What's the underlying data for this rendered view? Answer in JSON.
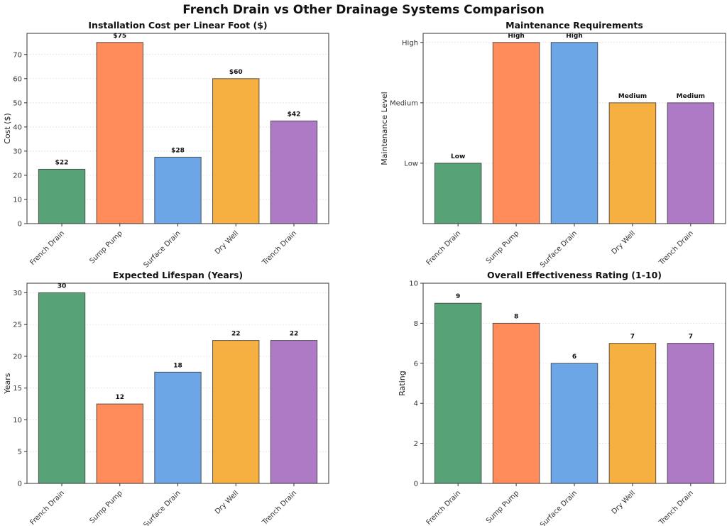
{
  "suptitle": "French Drain vs Other Drainage Systems Comparison",
  "colors": [
    "#57a377",
    "#ff8c5a",
    "#6ca6e6",
    "#f5b041",
    "#af7ac5"
  ],
  "chart_data": [
    {
      "type": "bar",
      "title": "Installation Cost per Linear Foot ($)",
      "xlabel": "",
      "ylabel": "Cost ($)",
      "categories": [
        "French Drain",
        "Sump Pump",
        "Surface Drain",
        "Dry Well",
        "Trench Drain"
      ],
      "values": [
        22.5,
        75,
        27.5,
        60,
        42.5
      ],
      "data_labels": [
        "$22",
        "$75",
        "$28",
        "$60",
        "$42"
      ],
      "ylim": [
        0,
        78.75
      ],
      "yticks": [
        0,
        10,
        20,
        30,
        40,
        50,
        60,
        70
      ],
      "ytick_labels": [
        "0",
        "10",
        "20",
        "30",
        "40",
        "50",
        "60",
        "70"
      ],
      "grid": "y"
    },
    {
      "type": "bar",
      "title": "Maintenance Requirements",
      "xlabel": "",
      "ylabel": "Maintenance Level",
      "categories": [
        "French Drain",
        "Sump Pump",
        "Surface Drain",
        "Dry Well",
        "Trench Drain"
      ],
      "values": [
        1,
        3,
        3,
        2,
        2
      ],
      "data_labels": [
        "Low",
        "High",
        "High",
        "Medium",
        "Medium"
      ],
      "ylim": [
        0,
        3.15
      ],
      "yticks": [
        1,
        2,
        3
      ],
      "ytick_labels": [
        "Low",
        "Medium",
        "High"
      ],
      "grid": "y"
    },
    {
      "type": "bar",
      "title": "Expected Lifespan (Years)",
      "xlabel": "",
      "ylabel": "Years",
      "categories": [
        "French Drain",
        "Sump Pump",
        "Surface Drain",
        "Dry Well",
        "Trench Drain"
      ],
      "values": [
        30,
        12.5,
        17.5,
        22.5,
        22.5
      ],
      "data_labels": [
        "30",
        "12",
        "18",
        "22",
        "22"
      ],
      "ylim": [
        0,
        31.5
      ],
      "yticks": [
        0,
        5,
        10,
        15,
        20,
        25,
        30
      ],
      "ytick_labels": [
        "0",
        "5",
        "10",
        "15",
        "20",
        "25",
        "30"
      ],
      "grid": "y"
    },
    {
      "type": "bar",
      "title": "Overall Effectiveness Rating (1-10)",
      "xlabel": "",
      "ylabel": "Rating",
      "categories": [
        "French Drain",
        "Sump Pump",
        "Surface Drain",
        "Dry Well",
        "Trench Drain"
      ],
      "values": [
        9,
        8,
        6,
        7,
        7
      ],
      "data_labels": [
        "9",
        "8",
        "6",
        "7",
        "7"
      ],
      "ylim": [
        0,
        10
      ],
      "yticks": [
        0,
        2,
        4,
        6,
        8,
        10
      ],
      "ytick_labels": [
        "0",
        "2",
        "4",
        "6",
        "8",
        "10"
      ],
      "grid": "y"
    }
  ]
}
